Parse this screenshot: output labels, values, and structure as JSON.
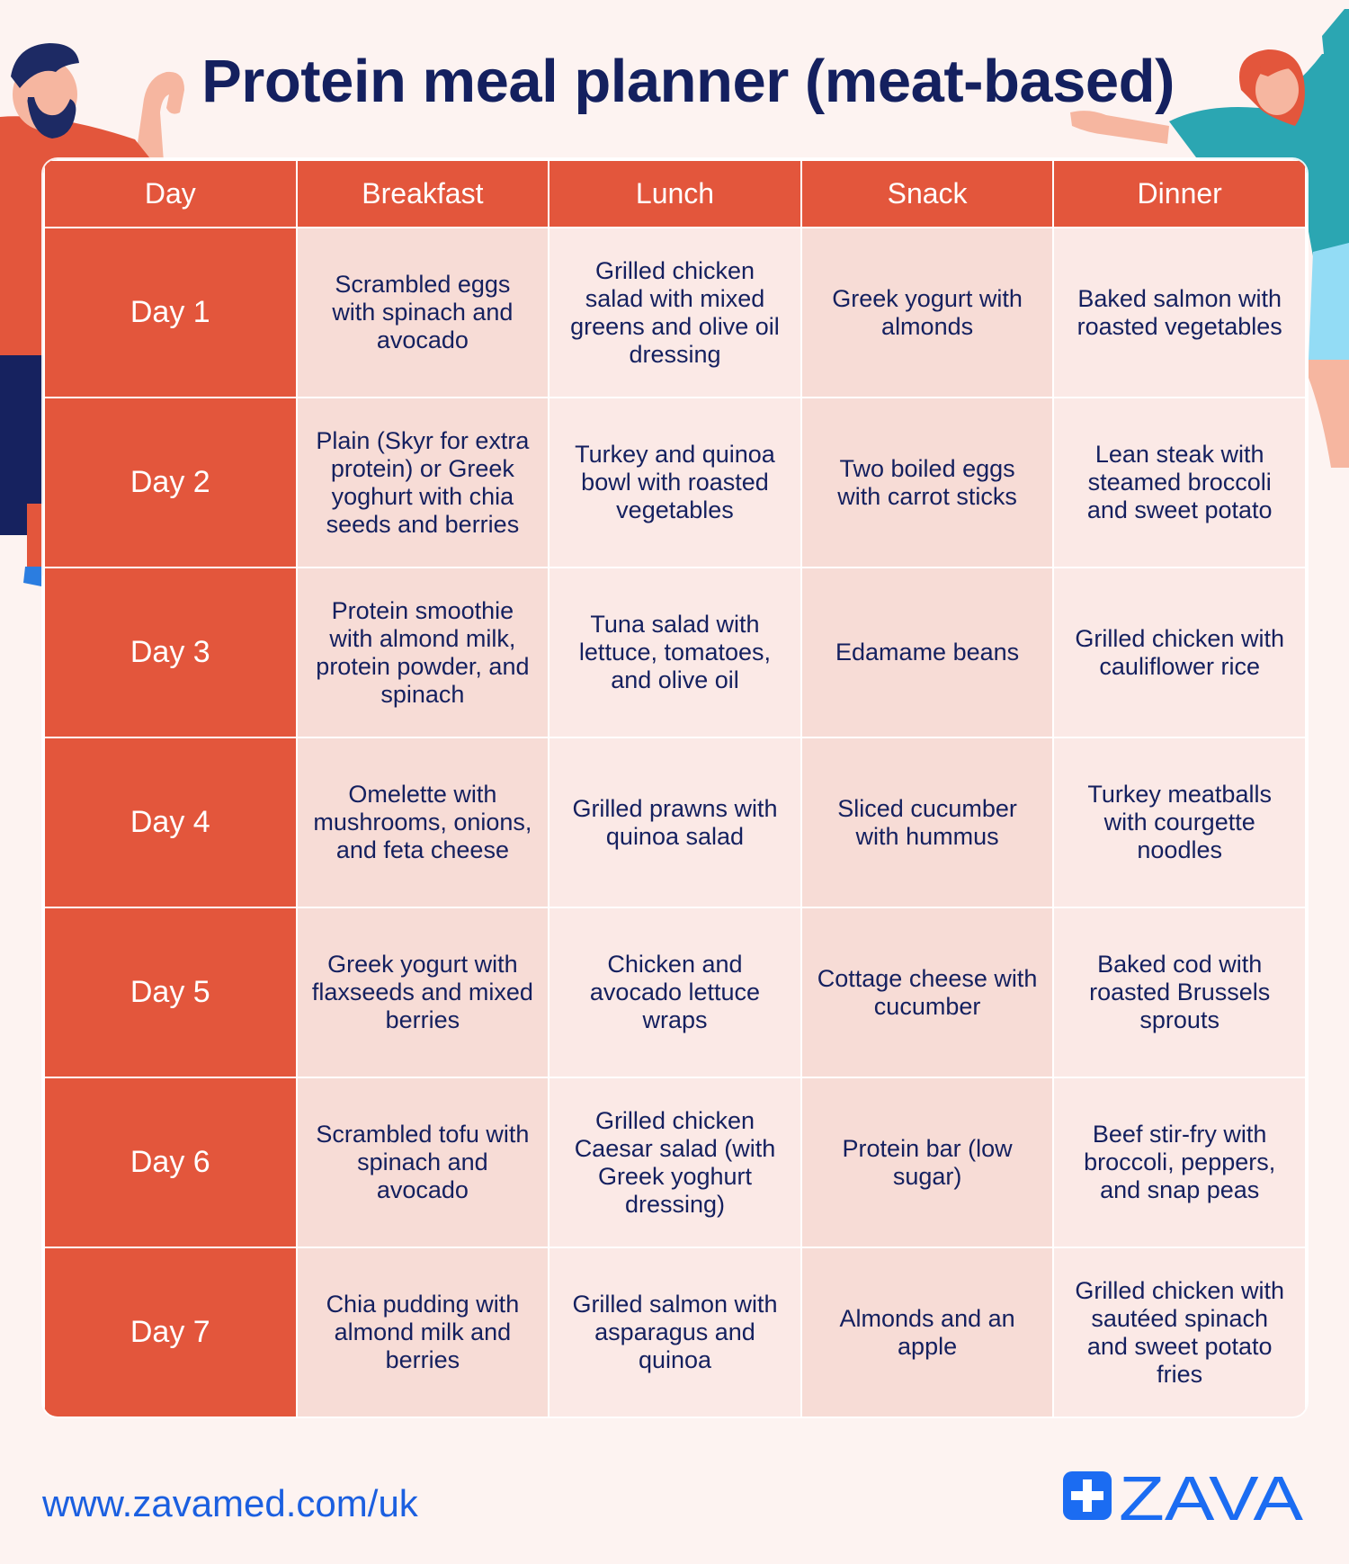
{
  "title": "Protein meal planner (meat-based)",
  "colors": {
    "header": "#e3563c",
    "title": "#14205f",
    "link": "#1b5fe0",
    "logo": "#1b6cf2",
    "cell_light": "#fbe9e6",
    "cell_mid": "#f7dcd6"
  },
  "table": {
    "headers": [
      "Day",
      "Breakfast",
      "Lunch",
      "Snack",
      "Dinner"
    ],
    "rows": [
      {
        "day": "Day 1",
        "breakfast": "Scrambled eggs with spinach and avocado",
        "lunch": "Grilled chicken salad with mixed greens and olive oil dressing",
        "snack": "Greek yogurt with almonds",
        "dinner": "Baked salmon with roasted vegetables"
      },
      {
        "day": "Day 2",
        "breakfast": "Plain (Skyr for extra protein) or Greek yoghurt with chia seeds and berries",
        "lunch": "Turkey and quinoa bowl with roasted vegetables",
        "snack": "Two boiled eggs with carrot sticks",
        "dinner": "Lean steak with steamed broccoli and sweet potato"
      },
      {
        "day": "Day 3",
        "breakfast": "Protein smoothie with almond milk, protein powder, and spinach",
        "lunch": "Tuna salad with lettuce, tomatoes, and olive oil",
        "snack": "Edamame beans",
        "dinner": "Grilled chicken with cauliflower rice"
      },
      {
        "day": "Day 4",
        "breakfast": "Omelette with mushrooms, onions, and feta cheese",
        "lunch": "Grilled prawns with quinoa salad",
        "snack": "Sliced cucumber with hummus",
        "dinner": "Turkey meatballs with courgette noodles"
      },
      {
        "day": "Day 5",
        "breakfast": "Greek yogurt with flaxseeds and mixed berries",
        "lunch": "Chicken and avocado lettuce wraps",
        "snack": "Cottage cheese with cucumber",
        "dinner": "Baked cod with roasted Brussels sprouts"
      },
      {
        "day": "Day 6",
        "breakfast": "Scrambled tofu with spinach and avocado",
        "lunch": "Grilled chicken Caesar salad (with Greek yoghurt dressing)",
        "snack": "Protein bar (low sugar)",
        "dinner": "Beef stir-fry with broccoli, peppers, and snap peas"
      },
      {
        "day": "Day 7",
        "breakfast": "Chia pudding with almond milk and berries",
        "lunch": "Grilled salmon with asparagus and quinoa",
        "snack": "Almonds and an apple",
        "dinner": "Grilled chicken with sautéed spinach and sweet potato fries"
      }
    ]
  },
  "footer": {
    "url": "www.zavamed.com/uk",
    "logo_text": "ZAVA",
    "logo_icon": "medical-cross-icon"
  },
  "illustrations": {
    "left": "flexing-man-illustration",
    "right": "waving-woman-illustration"
  }
}
